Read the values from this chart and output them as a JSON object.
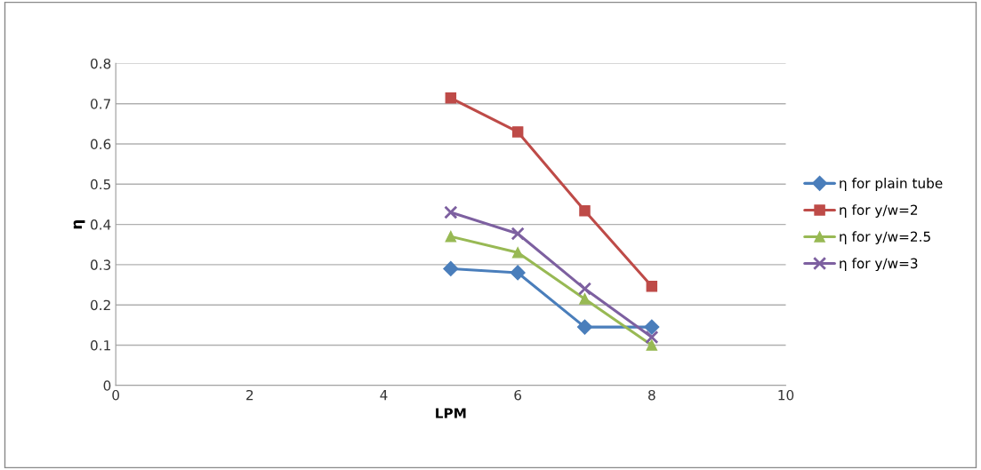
{
  "chart_data": {
    "type": "line",
    "xlabel": "LPM",
    "ylabel": "η",
    "x": [
      5,
      6,
      7,
      8
    ],
    "series": [
      {
        "name": "η for plain tube",
        "color": "#4a7ebb",
        "marker": "diamond",
        "values": [
          0.29,
          0.28,
          0.145,
          0.145
        ]
      },
      {
        "name": "η for y/w=2",
        "color": "#be4b48",
        "marker": "square",
        "values": [
          0.714,
          0.63,
          0.434,
          0.246
        ]
      },
      {
        "name": "η for y/w=2.5",
        "color": "#98b954",
        "marker": "triangle",
        "values": [
          0.37,
          0.33,
          0.215,
          0.1
        ]
      },
      {
        "name": "η for y/w=3",
        "color": "#7d60a0",
        "marker": "cross",
        "values": [
          0.43,
          0.377,
          0.24,
          0.12
        ]
      }
    ],
    "xlim": [
      0,
      10
    ],
    "xticks": [
      0,
      2,
      4,
      6,
      8,
      10
    ],
    "ylim": [
      0,
      0.8
    ],
    "yticks": [
      0,
      0.1,
      0.2,
      0.3,
      0.4,
      0.5,
      0.6,
      0.7,
      0.8
    ],
    "grid": "y",
    "legend": "right",
    "line_style": "solid"
  }
}
